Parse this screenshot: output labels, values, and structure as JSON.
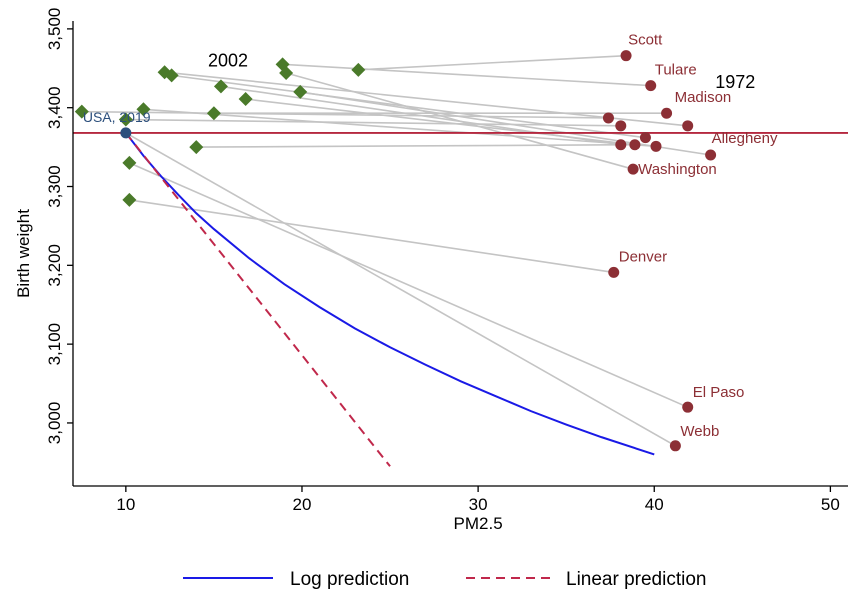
{
  "chart_data": {
    "type": "scatter",
    "xlabel": "PM2.5",
    "ylabel": "Birth weight",
    "xlim": [
      7,
      51
    ],
    "ylim": [
      2920,
      3510
    ],
    "xticks": [
      10,
      20,
      30,
      40,
      50
    ],
    "xtick_labels": [
      "10",
      "20",
      "30",
      "40",
      "50"
    ],
    "yticks": [
      3000,
      3100,
      3200,
      3300,
      3400,
      3500
    ],
    "ytick_labels": [
      "3,000",
      "3,100",
      "3,200",
      "3,300",
      "3,400",
      "3,500"
    ],
    "grid": false,
    "reference_line": {
      "y": 3368,
      "color": "#b5283f"
    },
    "usa_point": {
      "label": "USA, 2019",
      "x": 10,
      "y": 3368,
      "color": "#2c4f7c"
    },
    "year_labels": [
      {
        "text": "2002",
        "x": 15.8,
        "y": 3452
      },
      {
        "text": "1972",
        "x": 44.6,
        "y": 3425
      }
    ],
    "series": [
      {
        "name": "2002",
        "marker": "diamond",
        "color": "#4a7a2a",
        "points": [
          {
            "x": 7.5,
            "y": 3395
          },
          {
            "x": 10.0,
            "y": 3385
          },
          {
            "x": 11.0,
            "y": 3398
          },
          {
            "x": 12.2,
            "y": 3445
          },
          {
            "x": 12.6,
            "y": 3441
          },
          {
            "x": 15.0,
            "y": 3393
          },
          {
            "x": 15.4,
            "y": 3427
          },
          {
            "x": 16.8,
            "y": 3411
          },
          {
            "x": 18.9,
            "y": 3455
          },
          {
            "x": 19.1,
            "y": 3444
          },
          {
            "x": 19.9,
            "y": 3420
          },
          {
            "x": 23.2,
            "y": 3448
          },
          {
            "x": 14.0,
            "y": 3350
          },
          {
            "x": 10.2,
            "y": 3330
          },
          {
            "x": 10.2,
            "y": 3283
          }
        ]
      },
      {
        "name": "1972",
        "marker": "circle",
        "color": "#8c2f35",
        "points": [
          {
            "x": 38.4,
            "y": 3466
          },
          {
            "x": 39.8,
            "y": 3428
          },
          {
            "x": 40.7,
            "y": 3393
          },
          {
            "x": 41.9,
            "y": 3377
          },
          {
            "x": 37.4,
            "y": 3387
          },
          {
            "x": 38.1,
            "y": 3377
          },
          {
            "x": 39.5,
            "y": 3362
          },
          {
            "x": 38.1,
            "y": 3353
          },
          {
            "x": 38.9,
            "y": 3353
          },
          {
            "x": 40.1,
            "y": 3351
          },
          {
            "x": 43.2,
            "y": 3340
          },
          {
            "x": 38.8,
            "y": 3322
          },
          {
            "x": 37.7,
            "y": 3191
          },
          {
            "x": 41.9,
            "y": 3020
          },
          {
            "x": 41.2,
            "y": 2971
          }
        ]
      }
    ],
    "connectors": [
      [
        7.5,
        3395,
        37.4,
        3387
      ],
      [
        10.0,
        3385,
        38.1,
        3377
      ],
      [
        11.0,
        3398,
        40.1,
        3351
      ],
      [
        12.2,
        3445,
        41.9,
        3377
      ],
      [
        12.6,
        3441,
        39.5,
        3362
      ],
      [
        15.0,
        3393,
        40.7,
        3393
      ],
      [
        15.4,
        3427,
        38.1,
        3353
      ],
      [
        16.8,
        3411,
        38.9,
        3353
      ],
      [
        18.9,
        3455,
        39.8,
        3428
      ],
      [
        19.1,
        3444,
        38.8,
        3322
      ],
      [
        19.9,
        3420,
        43.2,
        3340
      ],
      [
        23.2,
        3448,
        38.4,
        3466
      ],
      [
        14.0,
        3350,
        38.9,
        3353
      ],
      [
        10.2,
        3330,
        41.9,
        3020
      ],
      [
        10.2,
        3283,
        37.7,
        3191
      ],
      [
        10.0,
        3368,
        41.2,
        2971
      ]
    ],
    "county_labels": [
      {
        "text": "Scott",
        "x": 38.4,
        "y": 3466
      },
      {
        "text": "Tulare",
        "x": 39.8,
        "y": 3428
      },
      {
        "text": "Madison",
        "x": 40.7,
        "y": 3393
      },
      {
        "text": "Allegheny",
        "x": 43.2,
        "y": 3340
      },
      {
        "text": "Washington",
        "x": 38.8,
        "y": 3322
      },
      {
        "text": "Denver",
        "x": 37.7,
        "y": 3191
      },
      {
        "text": "El Paso",
        "x": 41.9,
        "y": 3020
      },
      {
        "text": "Webb",
        "x": 41.2,
        "y": 2971
      }
    ],
    "log_prediction": {
      "name": "Log prediction",
      "color": "#1a1ae6",
      "x": [
        10,
        11,
        12,
        13,
        14,
        15,
        17,
        19,
        21,
        23,
        25,
        27,
        29,
        31,
        33,
        35,
        37,
        40
      ],
      "y": [
        3368,
        3339,
        3313,
        3289,
        3266,
        3246,
        3209,
        3176,
        3147,
        3120,
        3096,
        3074,
        3053,
        3034,
        3015,
        2998,
        2982,
        2960
      ]
    },
    "linear_prediction": {
      "name": "Linear prediction",
      "color": "#c0284b",
      "x": [
        10,
        25
      ],
      "y": [
        3368,
        2945
      ]
    },
    "legend": {
      "placement": "bottom",
      "items": [
        {
          "label": "Log prediction",
          "color": "#1a1ae6",
          "style": "solid"
        },
        {
          "label": "Linear prediction",
          "color": "#c0284b",
          "style": "dashed"
        }
      ]
    }
  }
}
